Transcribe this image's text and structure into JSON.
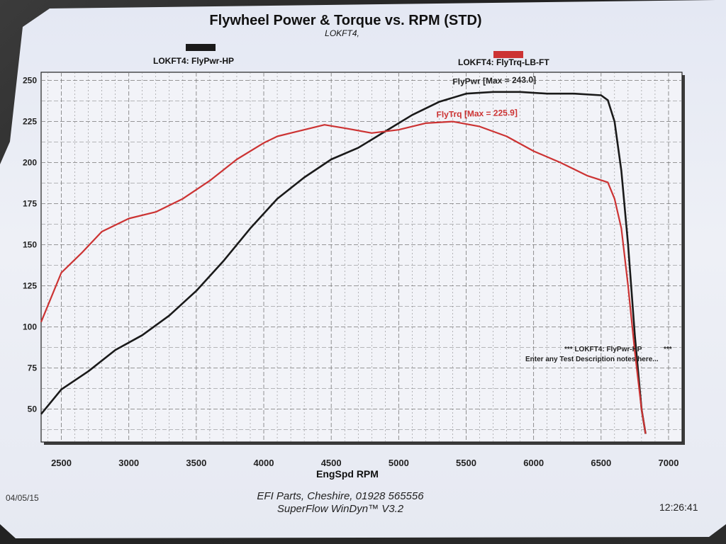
{
  "chart_data": {
    "type": "line",
    "title": "Flywheel Power & Torque vs. RPM (STD)",
    "subtitle": "LOKFT4,",
    "xlabel": "EngSpd RPM",
    "ylabel": "",
    "xlim": [
      2350,
      7100
    ],
    "ylim": [
      30,
      255
    ],
    "x_ticks": [
      2500,
      3000,
      3500,
      4000,
      4500,
      5000,
      5500,
      6000,
      6500,
      7000
    ],
    "y_ticks": [
      50,
      75,
      100,
      125,
      150,
      175,
      200,
      225,
      250
    ],
    "grid": true,
    "legend_position": "top",
    "series": [
      {
        "name": "LOKFT4: FlyPwr-HP",
        "color": "#1a1a1a",
        "annotation": "FlyPwr [Max = 243.0]",
        "x": [
          2350,
          2500,
          2700,
          2900,
          3100,
          3300,
          3500,
          3700,
          3900,
          4100,
          4300,
          4500,
          4700,
          4900,
          5100,
          5300,
          5500,
          5700,
          5900,
          6100,
          6300,
          6500,
          6550,
          6600,
          6650,
          6700,
          6750,
          6800,
          6830
        ],
        "y": [
          47,
          62,
          73,
          86,
          95,
          107,
          122,
          140,
          160,
          178,
          191,
          202,
          209,
          219,
          229,
          237,
          242,
          243,
          243,
          242,
          242,
          241,
          238,
          225,
          195,
          150,
          95,
          50,
          35
        ]
      },
      {
        "name": "LOKFT4: FlyTrq-LB-FT",
        "color": "#cc3333",
        "annotation": "FlyTrq [Max = 225.9]",
        "x": [
          2350,
          2500,
          2650,
          2800,
          3000,
          3200,
          3400,
          3600,
          3800,
          4000,
          4100,
          4200,
          4300,
          4450,
          4600,
          4800,
          5000,
          5200,
          5400,
          5600,
          5800,
          6000,
          6200,
          6400,
          6550,
          6600,
          6650,
          6700,
          6750,
          6800,
          6830
        ],
        "y": [
          103,
          133,
          145,
          158,
          166,
          170,
          178,
          189,
          202,
          212,
          216,
          218,
          220,
          223,
          221,
          218,
          220,
          224,
          225,
          222,
          216,
          207,
          200,
          192,
          188,
          178,
          160,
          125,
          85,
          50,
          35
        ]
      }
    ],
    "notes": [
      "*** LOKFT4: FlyPwr-HP",
      "***",
      "Enter any Test Description notes here..."
    ]
  },
  "footer": {
    "line1": "EFI Parts, Cheshire, 01928 565556",
    "line2": "SuperFlow WinDyn™ V3.2",
    "date": "04/05/15",
    "time": "12:26:41"
  },
  "colors": {
    "grid": "#777777",
    "frame": "#222222"
  }
}
